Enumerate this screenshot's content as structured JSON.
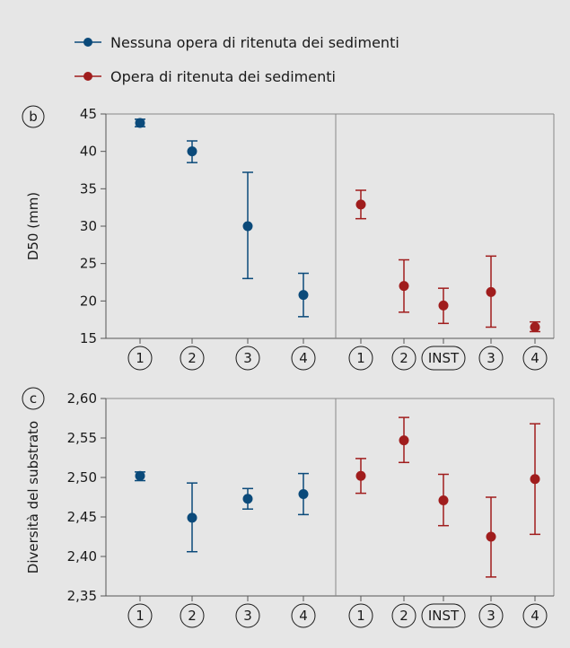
{
  "legend": [
    {
      "label": "Nessuna opera di ritenuta dei sedimenti",
      "color": "#0b4a7a"
    },
    {
      "label": "Opera di ritenuta dei sedimenti",
      "color": "#a01d1d"
    }
  ],
  "chart_data": [
    {
      "type": "scatter",
      "panel_label": "b",
      "ylabel": "D50 (mm)",
      "ylim": [
        15,
        45
      ],
      "yticks": [
        "15",
        "20",
        "25",
        "30",
        "35",
        "40",
        "45"
      ],
      "categories": [
        "1",
        "2",
        "3",
        "4",
        "1",
        "2",
        "INST",
        "3",
        "4"
      ],
      "series": [
        {
          "name": "Nessuna opera di ritenuta dei sedimenti",
          "color": "#0b4a7a",
          "points": [
            {
              "x": "1",
              "y": 43.8,
              "low": 43.3,
              "high": 44.3
            },
            {
              "x": "2",
              "y": 40.0,
              "low": 38.5,
              "high": 41.4
            },
            {
              "x": "3",
              "y": 30.0,
              "low": 23.0,
              "high": 37.2
            },
            {
              "x": "4",
              "y": 20.8,
              "low": 17.9,
              "high": 23.7
            }
          ]
        },
        {
          "name": "Opera di ritenuta dei sedimenti",
          "color": "#a01d1d",
          "points": [
            {
              "x": "1",
              "y": 32.9,
              "low": 31.0,
              "high": 34.8
            },
            {
              "x": "2",
              "y": 22.0,
              "low": 18.5,
              "high": 25.5
            },
            {
              "x": "INST",
              "y": 19.4,
              "low": 17.0,
              "high": 21.7
            },
            {
              "x": "3",
              "y": 21.2,
              "low": 16.5,
              "high": 26.0
            },
            {
              "x": "4",
              "y": 16.5,
              "low": 15.9,
              "high": 17.2
            }
          ]
        }
      ]
    },
    {
      "type": "scatter",
      "panel_label": "c",
      "ylabel": "Diversità del substrato",
      "ylim": [
        2.35,
        2.6
      ],
      "yticks": [
        "2,35",
        "2,40",
        "2,45",
        "2,50",
        "2,55",
        "2,60"
      ],
      "categories": [
        "1",
        "2",
        "3",
        "4",
        "1",
        "2",
        "INST",
        "3",
        "4"
      ],
      "series": [
        {
          "name": "Nessuna opera di ritenuta dei sedimenti",
          "color": "#0b4a7a",
          "points": [
            {
              "x": "1",
              "y": 2.502,
              "low": 2.496,
              "high": 2.507
            },
            {
              "x": "2",
              "y": 2.449,
              "low": 2.406,
              "high": 2.493
            },
            {
              "x": "3",
              "y": 2.473,
              "low": 2.46,
              "high": 2.486
            },
            {
              "x": "4",
              "y": 2.479,
              "low": 2.453,
              "high": 2.505
            }
          ]
        },
        {
          "name": "Opera di ritenuta dei sedimenti",
          "color": "#a01d1d",
          "points": [
            {
              "x": "1",
              "y": 2.502,
              "low": 2.48,
              "high": 2.524
            },
            {
              "x": "2",
              "y": 2.547,
              "low": 2.519,
              "high": 2.576
            },
            {
              "x": "INST",
              "y": 2.471,
              "low": 2.439,
              "high": 2.504
            },
            {
              "x": "3",
              "y": 2.425,
              "low": 2.374,
              "high": 2.475
            },
            {
              "x": "4",
              "y": 2.498,
              "low": 2.428,
              "high": 2.568
            }
          ]
        }
      ]
    }
  ]
}
